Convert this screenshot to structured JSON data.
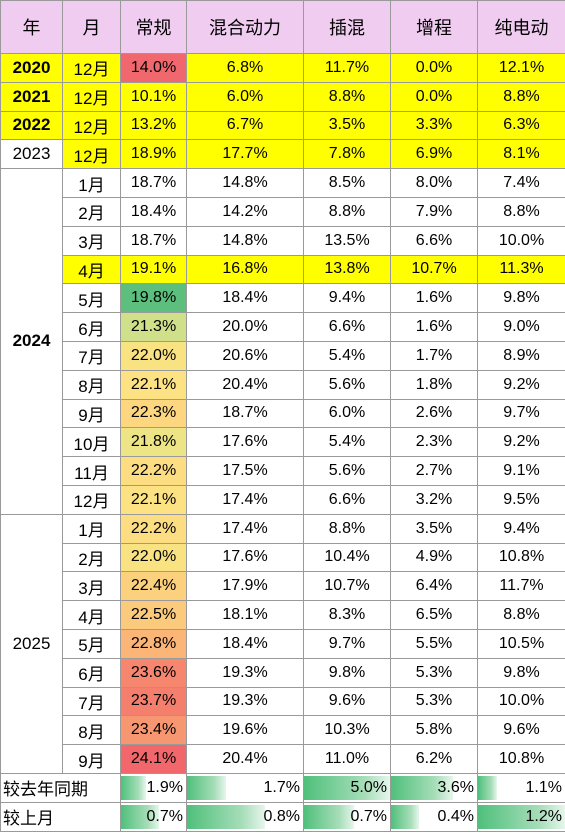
{
  "headers": [
    "年",
    "月",
    "常规",
    "混合动力",
    "插混",
    "增程",
    "纯电动"
  ],
  "annual_rows": [
    {
      "year": "2020",
      "month": "12月",
      "values": [
        "14.0%",
        "6.8%",
        "11.7%",
        "0.0%",
        "12.1%"
      ],
      "changgui_color": "#f0676e"
    },
    {
      "year": "2021",
      "month": "12月",
      "values": [
        "10.1%",
        "6.0%",
        "8.8%",
        "0.0%",
        "8.8%"
      ],
      "changgui_color": "#ffff00"
    },
    {
      "year": "2022",
      "month": "12月",
      "values": [
        "13.2%",
        "6.7%",
        "3.5%",
        "3.3%",
        "6.3%"
      ],
      "changgui_color": "#ffff00"
    },
    {
      "year": "2023",
      "month": "12月",
      "values": [
        "18.9%",
        "17.7%",
        "7.8%",
        "6.9%",
        "8.1%"
      ],
      "changgui_color": "#ffff00"
    }
  ],
  "year_2024": {
    "label": "2024",
    "rows": [
      {
        "month": "1月",
        "values": [
          "18.7%",
          "14.8%",
          "8.5%",
          "8.0%",
          "7.4%"
        ],
        "changgui_color": "#ffffff",
        "highlight": false
      },
      {
        "month": "2月",
        "values": [
          "18.4%",
          "14.2%",
          "8.8%",
          "7.9%",
          "8.8%"
        ],
        "changgui_color": "#ffffff",
        "highlight": false
      },
      {
        "month": "3月",
        "values": [
          "18.7%",
          "14.8%",
          "13.5%",
          "6.6%",
          "10.0%"
        ],
        "changgui_color": "#ffffff",
        "highlight": false
      },
      {
        "month": "4月",
        "values": [
          "19.1%",
          "16.8%",
          "13.8%",
          "10.7%",
          "11.3%"
        ],
        "changgui_color": "#ffff00",
        "highlight": true
      },
      {
        "month": "5月",
        "values": [
          "19.8%",
          "18.4%",
          "9.4%",
          "1.6%",
          "9.8%"
        ],
        "changgui_color": "#5cbf7d",
        "highlight": false
      },
      {
        "month": "6月",
        "values": [
          "21.3%",
          "20.0%",
          "6.6%",
          "1.6%",
          "9.0%"
        ],
        "changgui_color": "#cfdf8a",
        "highlight": false
      },
      {
        "month": "7月",
        "values": [
          "22.0%",
          "20.6%",
          "5.4%",
          "1.7%",
          "8.9%"
        ],
        "changgui_color": "#f9e282",
        "highlight": false
      },
      {
        "month": "8月",
        "values": [
          "22.1%",
          "20.4%",
          "5.6%",
          "1.8%",
          "9.2%"
        ],
        "changgui_color": "#fde283",
        "highlight": false
      },
      {
        "month": "9月",
        "values": [
          "22.3%",
          "18.7%",
          "6.0%",
          "2.6%",
          "9.7%"
        ],
        "changgui_color": "#fdd780",
        "highlight": false
      },
      {
        "month": "10月",
        "values": [
          "21.8%",
          "17.6%",
          "5.4%",
          "2.3%",
          "9.2%"
        ],
        "changgui_color": "#ede485",
        "highlight": false
      },
      {
        "month": "11月",
        "values": [
          "22.2%",
          "17.5%",
          "5.6%",
          "2.7%",
          "9.1%"
        ],
        "changgui_color": "#fddd82",
        "highlight": false
      },
      {
        "month": "12月",
        "values": [
          "22.1%",
          "17.4%",
          "6.6%",
          "3.2%",
          "9.5%"
        ],
        "changgui_color": "#fde283",
        "highlight": false
      }
    ]
  },
  "year_2025": {
    "label": "2025",
    "rows": [
      {
        "month": "1月",
        "values": [
          "22.2%",
          "17.4%",
          "8.8%",
          "3.5%",
          "9.4%"
        ],
        "changgui_color": "#fddd82"
      },
      {
        "month": "2月",
        "values": [
          "22.0%",
          "17.6%",
          "10.4%",
          "4.9%",
          "10.8%"
        ],
        "changgui_color": "#f9e282"
      },
      {
        "month": "3月",
        "values": [
          "22.4%",
          "17.9%",
          "10.7%",
          "6.4%",
          "11.7%"
        ],
        "changgui_color": "#fcd17e"
      },
      {
        "month": "4月",
        "values": [
          "22.5%",
          "18.1%",
          "8.3%",
          "6.5%",
          "8.8%"
        ],
        "changgui_color": "#fcca7c"
      },
      {
        "month": "5月",
        "values": [
          "22.8%",
          "18.4%",
          "9.7%",
          "5.5%",
          "10.5%"
        ],
        "changgui_color": "#fbb577"
      },
      {
        "month": "6月",
        "values": [
          "23.6%",
          "19.3%",
          "9.8%",
          "5.3%",
          "9.8%"
        ],
        "changgui_color": "#f6866e"
      },
      {
        "month": "7月",
        "values": [
          "23.7%",
          "19.3%",
          "9.6%",
          "5.3%",
          "10.0%"
        ],
        "changgui_color": "#f57f6d"
      },
      {
        "month": "8月",
        "values": [
          "23.4%",
          "19.6%",
          "10.3%",
          "5.8%",
          "9.6%"
        ],
        "changgui_color": "#f79771"
      },
      {
        "month": "9月",
        "values": [
          "24.1%",
          "20.4%",
          "11.0%",
          "6.2%",
          "10.8%"
        ],
        "changgui_color": "#f2676c"
      }
    ]
  },
  "comparisons": [
    {
      "label": "较去年同期",
      "values": [
        "1.9%",
        "1.7%",
        "5.0%",
        "3.6%",
        "1.1%"
      ],
      "bar_fill": [
        0.38,
        0.34,
        1.0,
        0.72,
        0.22
      ]
    },
    {
      "label": "较上月",
      "values": [
        "0.7%",
        "0.8%",
        "0.7%",
        "0.4%",
        "1.2%"
      ],
      "bar_fill": [
        0.58,
        0.67,
        0.58,
        0.33,
        1.0
      ]
    }
  ]
}
